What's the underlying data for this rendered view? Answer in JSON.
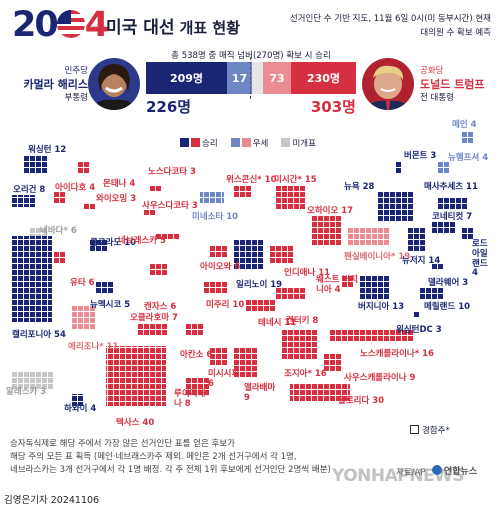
{
  "header": {
    "year_20": "20",
    "year_4": "4",
    "title_main": "미국 대선",
    "title_sub": "개표 현황",
    "source_line1": "선거인단 수 기반 지도, 11월 6일 0시(미 동부시간) 현재",
    "source_line2": "대의원 수 확보 예측"
  },
  "summary": {
    "total_line": "총 538명 중 매직 넘버(270명) 확보 시 승리",
    "dem_won": "209명",
    "dem_lean": "17",
    "rep_lean": "73",
    "rep_won": "230명",
    "dem_total": "226명",
    "rep_total": "303명"
  },
  "candidates": {
    "dem_party": "민주당",
    "dem_name": "카멀라 해리스",
    "dem_role": "부통령",
    "rep_party": "공화당",
    "rep_name": "도널드 트럼프",
    "rep_role": "전 대통령"
  },
  "legend": {
    "win": "승리",
    "lean": "우세",
    "undecided": "미개표",
    "battleground": "경합주*"
  },
  "states": [
    {
      "label": "워싱턴 12",
      "party": "dem"
    },
    {
      "label": "오리건 8",
      "party": "dem"
    },
    {
      "label": "아이다호 4",
      "party": "rep"
    },
    {
      "label": "몬태나 4",
      "party": "rep"
    },
    {
      "label": "노스다코타 3",
      "party": "rep"
    },
    {
      "label": "와이오밍 3",
      "party": "rep"
    },
    {
      "label": "사우스다코타 3",
      "party": "rep"
    },
    {
      "label": "위스콘신* 10",
      "party": "rep"
    },
    {
      "label": "미시간* 15",
      "party": "rep"
    },
    {
      "label": "미네소타 10",
      "party": "dem-lean"
    },
    {
      "label": "네바다* 6",
      "party": "undecided"
    },
    {
      "label": "콜로라도 10",
      "party": "dem"
    },
    {
      "label": "네브래스카 5",
      "party": "rep"
    },
    {
      "label": "아이오와 6",
      "party": "rep"
    },
    {
      "label": "일리노이 19",
      "party": "dem"
    },
    {
      "label": "인디애나 11",
      "party": "rep"
    },
    {
      "label": "오하이오 17",
      "party": "rep"
    },
    {
      "label": "펜실베이니아* 19",
      "party": "rep-lean"
    },
    {
      "label": "뉴욕 28",
      "party": "dem"
    },
    {
      "label": "유타 6",
      "party": "rep"
    },
    {
      "label": "캔자스 6",
      "party": "rep"
    },
    {
      "label": "미주리 10",
      "party": "rep"
    },
    {
      "label": "켄터키 8",
      "party": "rep"
    },
    {
      "label": "웨스트 버지니아 4",
      "party": "rep"
    },
    {
      "label": "버지니아 13",
      "party": "dem"
    },
    {
      "label": "뉴멕시코 5",
      "party": "dem"
    },
    {
      "label": "오클라호마 7",
      "party": "rep"
    },
    {
      "label": "아칸소 6",
      "party": "rep"
    },
    {
      "label": "테네시 11",
      "party": "rep"
    },
    {
      "label": "노스캐롤라이나* 16",
      "party": "rep"
    },
    {
      "label": "애리조나* 11",
      "party": "rep-lean"
    },
    {
      "label": "캘리포니아 54",
      "party": "dem"
    },
    {
      "label": "미시시피 6",
      "party": "rep"
    },
    {
      "label": "앨라배마 9",
      "party": "rep"
    },
    {
      "label": "조지아* 16",
      "party": "rep"
    },
    {
      "label": "사우스캐롤라이나 9",
      "party": "rep"
    },
    {
      "label": "루이지애나 8",
      "party": "rep"
    },
    {
      "label": "텍사스 40",
      "party": "rep"
    },
    {
      "label": "플로리다 30",
      "party": "rep"
    },
    {
      "label": "알래스카 3",
      "party": "undecided"
    },
    {
      "label": "하와이 4",
      "party": "dem"
    },
    {
      "label": "메인 4",
      "party": "dem-lean"
    },
    {
      "label": "버몬트 3",
      "party": "dem"
    },
    {
      "label": "뉴햄프셔 4",
      "party": "dem-lean"
    },
    {
      "label": "매사추세츠 11",
      "party": "dem"
    },
    {
      "label": "코네티컷 7",
      "party": "dem"
    },
    {
      "label": "로드 아일랜드 4",
      "party": "dem"
    },
    {
      "label": "뉴저지 14",
      "party": "dem"
    },
    {
      "label": "델라웨어 3",
      "party": "dem"
    },
    {
      "label": "메릴랜드 10",
      "party": "dem"
    },
    {
      "label": "워싱턴DC 3",
      "party": "dem"
    }
  ],
  "footer": {
    "note_line1": "승자독식제로 해당 주에서 가장 많은 선거인단 표를 얻은 후보가",
    "note_line2": "해당 주의 모든 표 획득 (메인·네브래스카주 제외. 메인은 2개 선거구에서 각 1명,",
    "note_line3": "네브라스카는 3개 선거구에서 각 1명 배정. 각 주 전체 1위 후보에게 선거인단 2명씩 배분)",
    "source": "자료/AP",
    "agency": "연합뉴스",
    "watermark": "YONHAPNEWS",
    "byline": "김영은기자 20241106"
  },
  "colors": {
    "dem": "#1a2673",
    "dem_lean": "#6f86c4",
    "rep": "#d62f3f",
    "rep_lean": "#e98c93",
    "undecided": "#c7c7c7"
  }
}
